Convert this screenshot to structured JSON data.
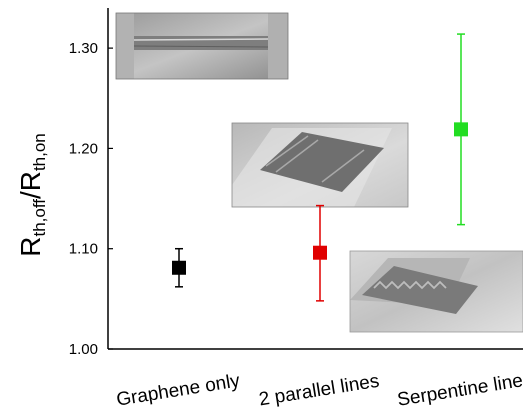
{
  "chart_data": {
    "type": "scatter",
    "ylabel": {
      "main1": "R",
      "sub1": "th,off",
      "sep": "/R",
      "sub2": "th,on"
    },
    "categories": [
      "Graphene only",
      "2 parallel lines",
      "Serpentine line"
    ],
    "y_ticks": [
      "1.00",
      "1.10",
      "1.20",
      "1.30"
    ],
    "ylim": [
      1.0,
      1.34
    ],
    "grid": false,
    "points": [
      {
        "category": "Graphene only",
        "value": 1.081,
        "err_low": 1.062,
        "err_high": 1.1,
        "color": "#000000"
      },
      {
        "category": "2 parallel lines",
        "value": 1.096,
        "err_low": 1.048,
        "err_high": 1.143,
        "color": "#e00000"
      },
      {
        "category": "Serpentine line",
        "value": 1.219,
        "err_low": 1.124,
        "err_high": 1.314,
        "color": "#22dd22"
      }
    ],
    "insets": [
      {
        "name": "sem-inset-graphene",
        "depicts": "Graphene only"
      },
      {
        "name": "sem-inset-parallel",
        "depicts": "2 parallel lines"
      },
      {
        "name": "sem-inset-serpentine",
        "depicts": "Serpentine line"
      }
    ]
  }
}
